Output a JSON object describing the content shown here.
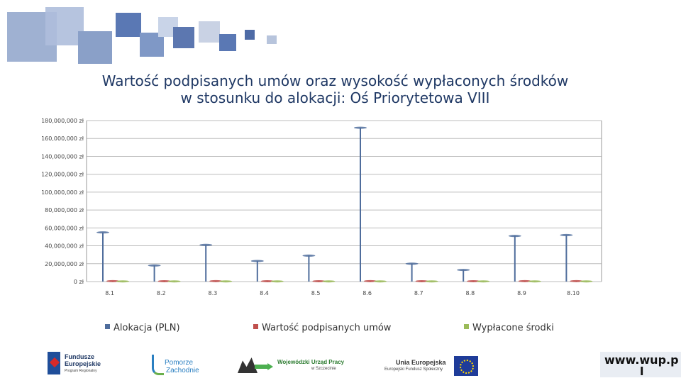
{
  "header": {
    "title_line1": "Wartość podpisanych umów oraz wysokość wypłaconych środków",
    "title_line2": "w stosunku do alokacji: Oś Priorytetowa VIII"
  },
  "colors": {
    "title": "#1f3864",
    "deco_dark": "#4a6aa8",
    "deco_light": "#b7c4dc",
    "series_alokacja": "#4f6d9c",
    "series_podpisane": "#c0504d",
    "series_wyplacone": "#9bbb59"
  },
  "chart_data": {
    "type": "bar",
    "title": "Wartość podpisanych umów oraz wysokość wypłaconych środków w stosunku do alokacji: Oś Priorytetowa VIII",
    "categories": [
      "8.1",
      "8.2",
      "8.3",
      "8.4",
      "8.5",
      "8.6",
      "8.7",
      "8.8",
      "8.9",
      "8.10"
    ],
    "series": [
      {
        "name": "Alokacja (PLN)",
        "color": "#4f6d9c",
        "values": [
          55000000,
          18000000,
          41000000,
          23000000,
          29000000,
          172000000,
          20000000,
          13000000,
          51000000,
          52000000
        ]
      },
      {
        "name": "Wartość podpisanych umów",
        "color": "#c0504d",
        "values": [
          500000,
          400000,
          500000,
          400000,
          400000,
          500000,
          400000,
          400000,
          500000,
          500000
        ]
      },
      {
        "name": "Wypłacone środki",
        "color": "#9bbb59",
        "values": [
          200000,
          200000,
          200000,
          200000,
          200000,
          200000,
          200000,
          200000,
          200000,
          200000
        ]
      }
    ],
    "yticks": [
      "0 zł",
      "20,000,000 zł",
      "40,000,000 zł",
      "60,000,000 zł",
      "80,000,000 zł",
      "100,000,000 zł",
      "120,000,000 zł",
      "140,000,000 zł",
      "160,000,000 zł",
      "180,000,000 zł"
    ],
    "ylim": [
      0,
      180000000
    ],
    "grid": true,
    "legend_position": "bottom"
  },
  "footer": {
    "logo_fe_line1": "Fundusze",
    "logo_fe_line2": "Europejskie",
    "logo_fe_sub": "Program Regionalny",
    "logo_pomorze_line1": "Pomorze",
    "logo_pomorze_line2": "Zachodnie",
    "logo_wup_line1": "Wojewódzki Urząd Pracy",
    "logo_wup_line2": "w Szczecinie",
    "logo_ue_line1": "Unia Europejska",
    "logo_ue_line2": "Europejski Fundusz Społeczny",
    "url_line1": "www.wup.p",
    "url_line2": "l"
  }
}
